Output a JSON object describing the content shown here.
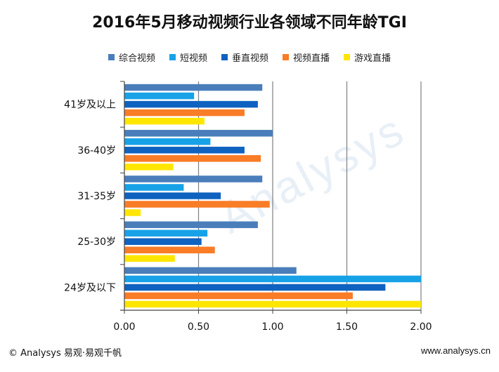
{
  "title": "2016年5月移动视频行业各领域不同年龄TGI",
  "watermark": "Analysys",
  "footer": {
    "copyright": "© Analysys 易观·易观千帆",
    "website": "www.analysys.cn"
  },
  "chart_data": {
    "type": "bar",
    "orientation": "horizontal",
    "title": "2016年5月移动视频行业各领域不同年龄TGI",
    "categories": [
      "41岁及以上",
      "36-40岁",
      "31-35岁",
      "25-30岁",
      "24岁及以下"
    ],
    "x_ticks": [
      "0.00",
      "0.50",
      "1.00",
      "1.50",
      "2.00"
    ],
    "xlim": [
      0,
      2.0
    ],
    "grid": true,
    "legend_position": "top",
    "series": [
      {
        "name": "综合视频",
        "color": "#4a7ebb",
        "values": [
          0.93,
          1.0,
          0.93,
          0.9,
          1.16
        ]
      },
      {
        "name": "短视频",
        "color": "#17a2e8",
        "values": [
          0.47,
          0.58,
          0.4,
          0.56,
          2.0
        ]
      },
      {
        "name": "垂直视频",
        "color": "#0f62c0",
        "values": [
          0.9,
          0.81,
          0.65,
          0.52,
          1.76
        ]
      },
      {
        "name": "视频直播",
        "color": "#f97c26",
        "values": [
          0.81,
          0.92,
          0.98,
          0.61,
          1.54
        ]
      },
      {
        "name": "游戏直播",
        "color": "#ffe600",
        "values": [
          0.54,
          0.33,
          0.11,
          0.34,
          2.0
        ]
      }
    ]
  }
}
